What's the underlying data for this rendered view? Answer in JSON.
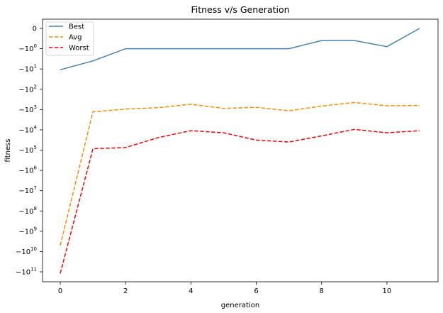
{
  "chart_data": {
    "type": "line",
    "title": "Fitness v/s Generation",
    "xlabel": "generation",
    "ylabel": "fitness",
    "yscale": "symlog",
    "x": [
      0,
      1,
      2,
      3,
      4,
      5,
      6,
      7,
      8,
      9,
      10,
      11
    ],
    "xticks": [
      "0",
      "2",
      "4",
      "6",
      "8",
      "10"
    ],
    "xtick_values": [
      0,
      2,
      4,
      6,
      8,
      10
    ],
    "yticks": [
      {
        "value": 0,
        "base": "0",
        "exp": ""
      },
      {
        "value": -1,
        "base": "−10",
        "exp": "0"
      },
      {
        "value": -10,
        "base": "−10",
        "exp": "1"
      },
      {
        "value": -100,
        "base": "−10",
        "exp": "2"
      },
      {
        "value": -1000,
        "base": "−10",
        "exp": "3"
      },
      {
        "value": -10000,
        "base": "−10",
        "exp": "4"
      },
      {
        "value": -100000,
        "base": "−10",
        "exp": "5"
      },
      {
        "value": -1000000,
        "base": "−10",
        "exp": "6"
      },
      {
        "value": -10000000,
        "base": "−10",
        "exp": "7"
      },
      {
        "value": -100000000,
        "base": "−10",
        "exp": "8"
      },
      {
        "value": -1000000000,
        "base": "−10",
        "exp": "9"
      },
      {
        "value": -10000000000,
        "base": "−10",
        "exp": "10"
      },
      {
        "value": -100000000000,
        "base": "−10",
        "exp": "11"
      }
    ],
    "series": [
      {
        "name": "Best",
        "color": "#4682b4",
        "dash": "solid",
        "values": [
          -11,
          -4,
          -1,
          -1,
          -1,
          -1,
          -1,
          -1,
          -0.6,
          -0.6,
          -0.9,
          0
        ]
      },
      {
        "name": "Avg",
        "color": "#ff8c00",
        "dash": "dashed",
        "values": [
          -5000000000,
          -1300,
          -950,
          -800,
          -550,
          -880,
          -780,
          -1150,
          -670,
          -450,
          -650,
          -630
        ]
      },
      {
        "name": "Worst",
        "color": "#ff0000",
        "dash": "dashed",
        "values": [
          -120000000000,
          -85000,
          -75000,
          -24000,
          -11000,
          -14000,
          -32000,
          -40000,
          -20000,
          -9500,
          -14000,
          -11000
        ]
      }
    ],
    "legend_position": "top-left",
    "grid": false
  }
}
